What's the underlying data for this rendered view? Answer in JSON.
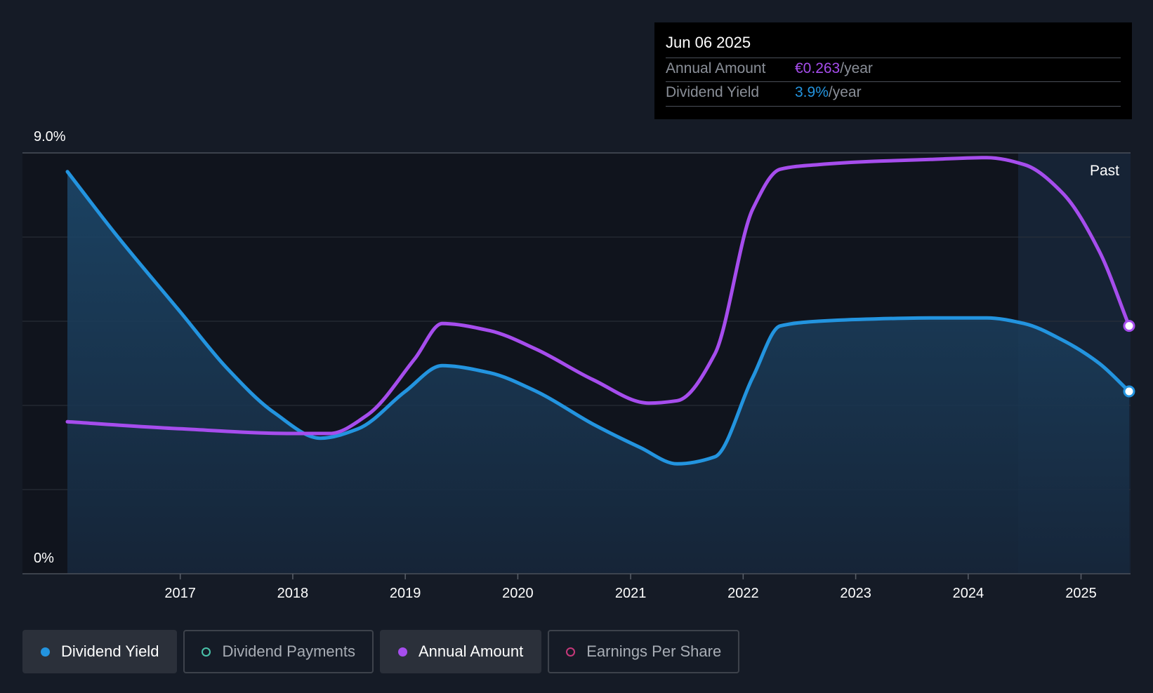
{
  "tooltip": {
    "date": "Jun 06 2025",
    "annual_amount_label": "Annual Amount",
    "annual_amount_value": "€0.263",
    "dividend_yield_label": "Dividend Yield",
    "dividend_yield_value": "3.9%",
    "unit": "/year"
  },
  "legend": [
    {
      "label": "Dividend Yield",
      "color": "#2394df",
      "active": true
    },
    {
      "label": "Dividend Payments",
      "color": "#49c2a9",
      "active": false
    },
    {
      "label": "Annual Amount",
      "color": "#a64ded",
      "active": true
    },
    {
      "label": "Earnings Per Share",
      "color": "#c6387a",
      "active": false
    }
  ],
  "chart_data": {
    "type": "line",
    "y_tick_labels": [
      "9.0%",
      "0%"
    ],
    "ylim": [
      0,
      9.0
    ],
    "x_tick_labels": [
      "2017",
      "2018",
      "2019",
      "2020",
      "2021",
      "2022",
      "2023",
      "2024",
      "2025"
    ],
    "xlim": [
      "2016-01-01",
      "2025-06-06"
    ],
    "past_label": "Past",
    "grid": true,
    "series": [
      {
        "name": "Dividend Yield",
        "color": "#2394df",
        "area": true,
        "x": [
          "2016-01-01",
          "2016-06-01",
          "2017-01-01",
          "2017-06-01",
          "2017-11-01",
          "2018-04-01",
          "2018-08-01",
          "2019-01-01",
          "2019-05-01",
          "2019-10-01",
          "2020-03-01",
          "2020-09-01",
          "2021-02-01",
          "2021-06-01",
          "2021-10-01",
          "2022-02-01",
          "2022-05-01",
          "2022-09-01",
          "2023-03-01",
          "2023-09-01",
          "2024-03-01",
          "2024-07-01",
          "2024-11-01",
          "2025-03-01",
          "2025-06-06"
        ],
        "y": [
          8.6,
          7.3,
          5.6,
          4.4,
          3.45,
          2.9,
          3.1,
          3.9,
          4.45,
          4.3,
          3.9,
          3.2,
          2.7,
          2.35,
          2.5,
          4.2,
          5.3,
          5.4,
          5.45,
          5.47,
          5.47,
          5.35,
          5.0,
          4.5,
          3.9
        ]
      },
      {
        "name": "Annual Amount",
        "color": "#a64ded",
        "area": false,
        "x": [
          "2016-01-01",
          "2017-01-01",
          "2018-01-01",
          "2018-05-01",
          "2018-09-01",
          "2019-02-01",
          "2019-05-01",
          "2019-10-01",
          "2020-03-01",
          "2020-09-01",
          "2021-03-01",
          "2021-06-01",
          "2021-10-01",
          "2022-02-01",
          "2022-05-01",
          "2022-09-01",
          "2023-03-01",
          "2023-09-01",
          "2024-03-01",
          "2024-07-01",
          "2024-11-01",
          "2025-03-01",
          "2025-06-06"
        ],
        "y": [
          3.25,
          3.1,
          3.0,
          3.0,
          3.4,
          4.6,
          5.35,
          5.2,
          4.8,
          4.15,
          3.65,
          3.7,
          4.7,
          7.8,
          8.65,
          8.75,
          8.82,
          8.86,
          8.9,
          8.75,
          8.15,
          6.9,
          5.3
        ]
      }
    ]
  }
}
